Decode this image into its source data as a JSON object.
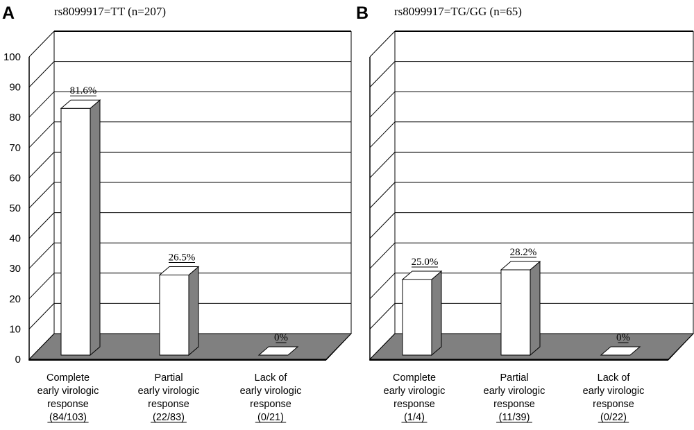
{
  "chart_data": [
    {
      "type": "bar",
      "panel_letter": "A",
      "title": "rs8099917=TT (n=207)",
      "categories": [
        [
          "Complete",
          "early virologic",
          "response",
          "(84/103)"
        ],
        [
          "Partial",
          "early virologic",
          "response",
          "(22/83)"
        ],
        [
          "Lack of",
          "early virologic",
          "response",
          "(0/21)"
        ]
      ],
      "values": [
        81.6,
        26.5,
        0
      ],
      "data_labels": [
        "81.6%",
        "26.5%",
        "0%"
      ],
      "ylim": [
        0,
        100
      ],
      "yticks": [
        "0",
        "10",
        "20",
        "30",
        "40",
        "50",
        "60",
        "70",
        "80",
        "90",
        "100"
      ],
      "grid": true,
      "xlabel": "",
      "ylabel": ""
    },
    {
      "type": "bar",
      "panel_letter": "B",
      "title": "rs8099917=TG/GG (n=65)",
      "categories": [
        [
          "Complete",
          "early virologic",
          "response",
          "(1/4)"
        ],
        [
          "Partial",
          "early virologic",
          "response",
          "(11/39)"
        ],
        [
          "Lack of",
          "early virologic",
          "response",
          "(0/22)"
        ]
      ],
      "values": [
        25.0,
        28.2,
        0
      ],
      "data_labels": [
        "25.0%",
        "28.2%",
        "0%"
      ],
      "ylim": [
        0,
        100
      ],
      "yticks": [],
      "grid": true,
      "xlabel": "",
      "ylabel": ""
    }
  ],
  "colors": {
    "floor": "#808080",
    "bar_front": "#ffffff",
    "bar_side": "#808080",
    "bar_top": "#ffffff",
    "grid": "#000000"
  }
}
